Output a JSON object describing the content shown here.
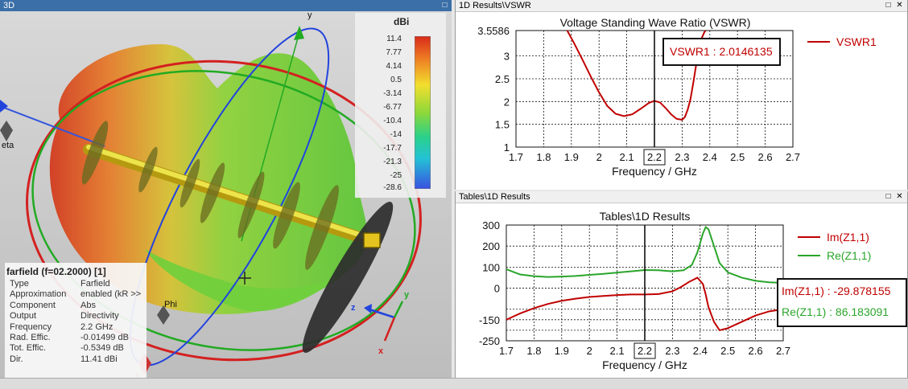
{
  "panels": {
    "view3d_title": "3D",
    "vswr_title": "1D Results\\VSWR",
    "z_title": "Tables\\1D Results",
    "max_glyph": "□",
    "close_glyph": "✕"
  },
  "colorbar": {
    "unit": "dBi",
    "ticks": [
      "11.4",
      "7.77",
      "4.14",
      "0.5",
      "-3.14",
      "-6.77",
      "-10.4",
      "-14",
      "-17.7",
      "-21.3",
      "-25",
      "-28.6"
    ]
  },
  "axes3d": {
    "x": "x",
    "y": "y",
    "z": "z",
    "theta": "eta",
    "phi": "Phi"
  },
  "farfield": {
    "title": "farfield (f=02.2000) [1]",
    "rows": [
      {
        "k": "Type",
        "v": "Farfield"
      },
      {
        "k": "Approximation",
        "v": "enabled (kR >>"
      },
      {
        "k": "Component",
        "v": "Abs"
      },
      {
        "k": "Output",
        "v": "Directivity"
      },
      {
        "k": "Frequency",
        "v": "2.2 GHz"
      },
      {
        "k": "Rad. Effic.",
        "v": "-0.01499 dB"
      },
      {
        "k": "Tot. Effic.",
        "v": "-0.5349 dB"
      },
      {
        "k": "Dir.",
        "v": "11.41 dBi"
      }
    ]
  },
  "chart_data": [
    {
      "type": "line",
      "title": "Voltage Standing Wave Ratio (VSWR)",
      "xlabel": "Frequency / GHz",
      "ylabel": "",
      "xlim": [
        1.7,
        2.7
      ],
      "ylim": [
        1,
        3.5586
      ],
      "xticks": [
        "1.7",
        "1.8",
        "1.9",
        "2",
        "2.1",
        "2.2",
        "2.3",
        "2.4",
        "2.5",
        "2.6",
        "2.7"
      ],
      "yticks": [
        {
          "value": 3.5586,
          "label": "3.5586"
        },
        {
          "value": 3,
          "label": "3"
        },
        {
          "value": 2.5,
          "label": "2.5"
        },
        {
          "value": 2,
          "label": "2"
        },
        {
          "value": 1.5,
          "label": "1.5"
        },
        {
          "value": 1,
          "label": "1"
        }
      ],
      "highlight_x_label": "2.2",
      "marker_x": 2.2,
      "marker_label": "VSWR1 : 2.0146135",
      "legend_position": "right",
      "grid": true,
      "series": [
        {
          "name": "VSWR1",
          "color": "#c00000",
          "x": [
            1.885,
            1.91,
            1.94,
            1.97,
            2.0,
            2.03,
            2.06,
            2.09,
            2.12,
            2.15,
            2.18,
            2.2,
            2.22,
            2.24,
            2.26,
            2.28,
            2.3,
            2.31,
            2.32,
            2.33,
            2.34,
            2.35,
            2.36,
            2.37,
            2.38,
            2.385
          ],
          "y": [
            3.5586,
            3.28,
            2.92,
            2.55,
            2.2,
            1.9,
            1.73,
            1.68,
            1.72,
            1.84,
            1.97,
            2.0146,
            1.98,
            1.86,
            1.72,
            1.62,
            1.6,
            1.66,
            1.82,
            2.05,
            2.4,
            2.78,
            3.12,
            3.38,
            3.52,
            3.5586
          ]
        }
      ]
    },
    {
      "type": "line",
      "title": "Tables\\1D Results",
      "xlabel": "Frequency / GHz",
      "ylabel": "",
      "xlim": [
        1.7,
        2.7
      ],
      "ylim": [
        -250,
        300
      ],
      "xticks": [
        "1.7",
        "1.8",
        "1.9",
        "2",
        "2.1",
        "2.2",
        "2.3",
        "2.4",
        "2.5",
        "2.6",
        "2.7"
      ],
      "yticks": [
        {
          "value": 300,
          "label": "300"
        },
        {
          "value": 200,
          "label": "200"
        },
        {
          "value": 100,
          "label": "100"
        },
        {
          "value": 0,
          "label": "0"
        },
        {
          "value": -100,
          "label": ""
        },
        {
          "value": -150,
          "label": "-150"
        },
        {
          "value": -200,
          "label": ""
        },
        {
          "value": -250,
          "label": "-250"
        }
      ],
      "highlight_x_label": "2.2",
      "marker_x": 2.2,
      "marker_labels": [
        "Im(Z1,1) : -29.878155",
        "Re(Z1,1) : 86.183091"
      ],
      "legend_position": "right",
      "grid": true,
      "series": [
        {
          "name": "Im(Z1,1)",
          "color": "#c00000",
          "x": [
            1.7,
            1.75,
            1.8,
            1.85,
            1.9,
            1.95,
            2.0,
            2.05,
            2.1,
            2.15,
            2.2,
            2.25,
            2.3,
            2.33,
            2.36,
            2.39,
            2.41,
            2.42,
            2.43,
            2.45,
            2.47,
            2.5,
            2.55,
            2.6,
            2.65,
            2.7
          ],
          "y": [
            -150,
            -120,
            -95,
            -75,
            -60,
            -50,
            -42,
            -37,
            -33,
            -30,
            -29.9,
            -28,
            -15,
            5,
            30,
            50,
            20,
            -30,
            -90,
            -160,
            -200,
            -190,
            -160,
            -130,
            -110,
            -100
          ]
        },
        {
          "name": "Re(Z1,1)",
          "color": "#2aa52a",
          "x": [
            1.7,
            1.75,
            1.8,
            1.85,
            1.9,
            1.95,
            2.0,
            2.05,
            2.1,
            2.15,
            2.2,
            2.25,
            2.3,
            2.34,
            2.37,
            2.39,
            2.41,
            2.42,
            2.43,
            2.45,
            2.47,
            2.5,
            2.55,
            2.6,
            2.65,
            2.7
          ],
          "y": [
            90,
            65,
            57,
            53,
            55,
            58,
            63,
            68,
            74,
            80,
            86.2,
            85,
            80,
            85,
            110,
            170,
            260,
            290,
            280,
            200,
            120,
            75,
            50,
            35,
            28,
            25
          ]
        }
      ]
    }
  ]
}
